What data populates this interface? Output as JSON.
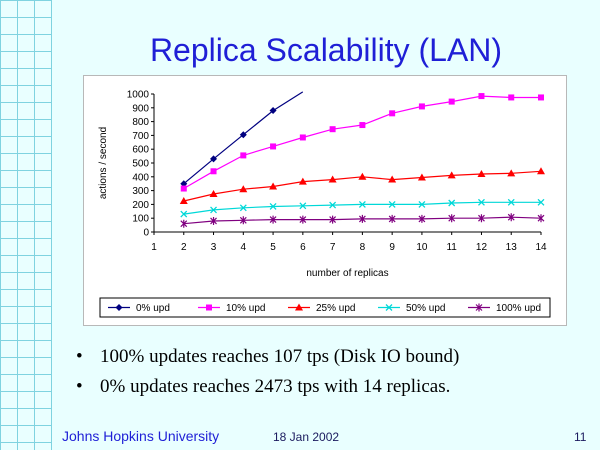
{
  "slide": {
    "title": "Replica Scalability (LAN)",
    "bullets": [
      "100% updates reaches 107 tps (Disk IO bound)",
      "0% updates reaches 2473 tps with 14 replicas."
    ],
    "footer": {
      "org": "Johns Hopkins University",
      "date": "18 Jan 2002",
      "page": "11"
    }
  },
  "chart_data": {
    "type": "line",
    "xlabel": "number of replicas",
    "ylabel": "actions / second",
    "xlim": [
      1,
      14
    ],
    "ylim": [
      0,
      1000
    ],
    "x_ticks": [
      1,
      2,
      3,
      4,
      5,
      6,
      7,
      8,
      9,
      10,
      11,
      12,
      13,
      14
    ],
    "y_ticks": [
      0,
      100,
      200,
      300,
      400,
      500,
      600,
      700,
      800,
      900,
      1000
    ],
    "grid": false,
    "legend_position": "bottom",
    "series": [
      {
        "name": "0% upd",
        "color": "#000080",
        "marker": "diamond",
        "points": [
          [
            2,
            350
          ],
          [
            3,
            530
          ],
          [
            4,
            705
          ],
          [
            5,
            880
          ]
        ],
        "line_to": [
          6,
          1015
        ]
      },
      {
        "name": "10% upd",
        "color": "#ff00ff",
        "marker": "square",
        "points": [
          [
            2,
            315
          ],
          [
            3,
            440
          ],
          [
            4,
            555
          ],
          [
            5,
            620
          ],
          [
            6,
            685
          ],
          [
            7,
            745
          ],
          [
            8,
            775
          ],
          [
            9,
            860
          ],
          [
            10,
            910
          ],
          [
            11,
            945
          ],
          [
            12,
            985
          ],
          [
            13,
            975
          ],
          [
            14,
            975
          ]
        ]
      },
      {
        "name": "25% upd",
        "color": "#ff0000",
        "marker": "triangle",
        "points": [
          [
            2,
            225
          ],
          [
            3,
            275
          ],
          [
            4,
            310
          ],
          [
            5,
            330
          ],
          [
            6,
            365
          ],
          [
            7,
            380
          ],
          [
            8,
            400
          ],
          [
            9,
            380
          ],
          [
            10,
            395
          ],
          [
            11,
            410
          ],
          [
            12,
            420
          ],
          [
            13,
            425
          ],
          [
            14,
            440
          ]
        ]
      },
      {
        "name": "50% upd",
        "color": "#00d8d8",
        "marker": "x",
        "points": [
          [
            2,
            130
          ],
          [
            3,
            160
          ],
          [
            4,
            175
          ],
          [
            5,
            185
          ],
          [
            6,
            190
          ],
          [
            7,
            195
          ],
          [
            8,
            200
          ],
          [
            9,
            200
          ],
          [
            10,
            200
          ],
          [
            11,
            210
          ],
          [
            12,
            215
          ],
          [
            13,
            215
          ],
          [
            14,
            215
          ]
        ]
      },
      {
        "name": "100% upd",
        "color": "#800080",
        "marker": "star",
        "points": [
          [
            2,
            60
          ],
          [
            3,
            80
          ],
          [
            4,
            85
          ],
          [
            5,
            90
          ],
          [
            6,
            90
          ],
          [
            7,
            90
          ],
          [
            8,
            95
          ],
          [
            9,
            95
          ],
          [
            10,
            95
          ],
          [
            11,
            100
          ],
          [
            12,
            100
          ],
          [
            13,
            107
          ],
          [
            14,
            100
          ]
        ]
      }
    ]
  }
}
